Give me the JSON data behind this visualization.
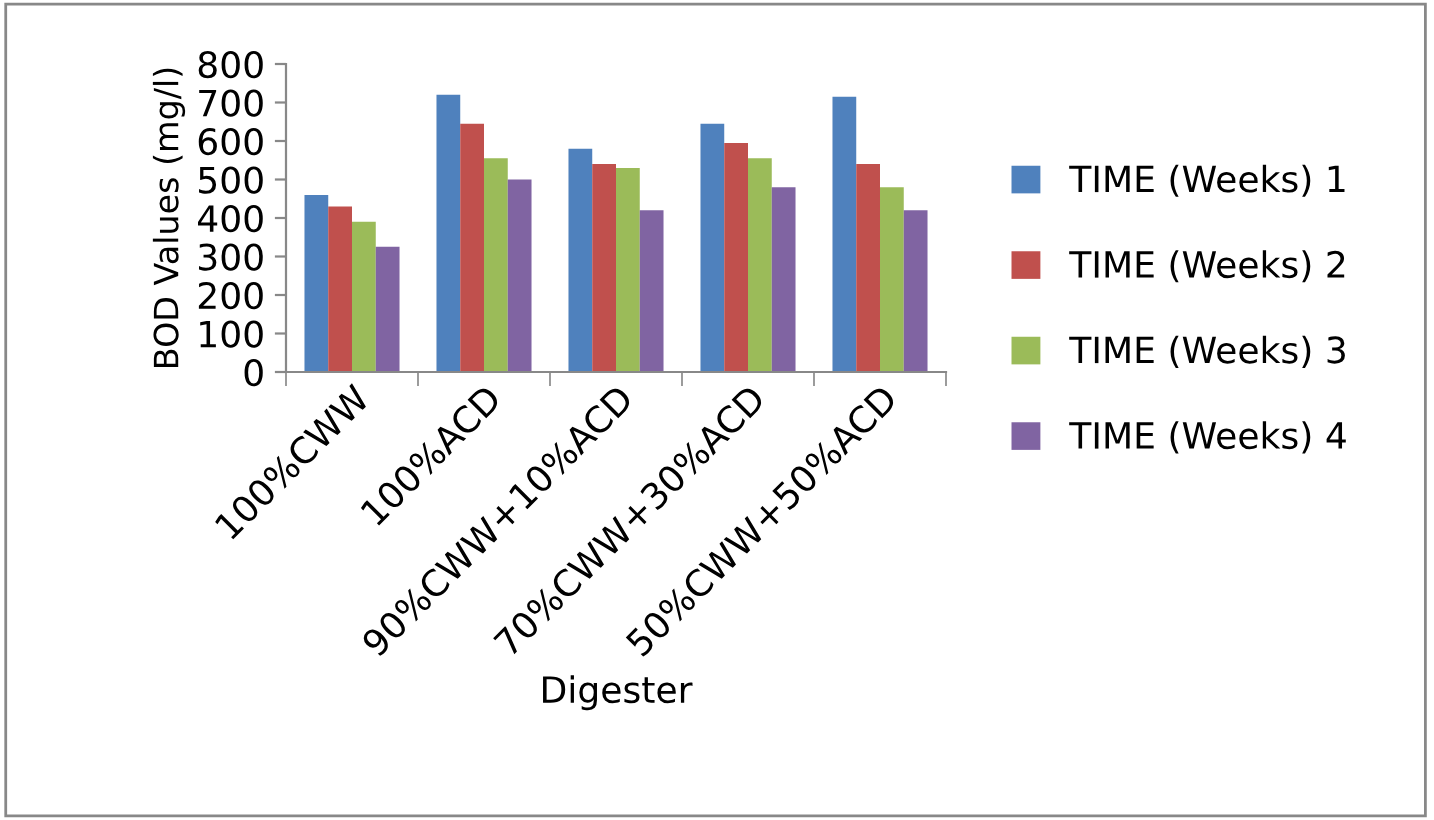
{
  "chart_data": {
    "type": "bar",
    "xlabel": "Digester",
    "ylabel": "BOD Values (mg/l)",
    "categories": [
      "100%CWW",
      "100%ACD",
      "90%CWW+10%ACD",
      "70%CWW+30%ACD",
      "50%CWW+50%ACD"
    ],
    "series": [
      {
        "name": "TIME (Weeks) 1",
        "color": "#4f81bd",
        "values": [
          460,
          720,
          580,
          645,
          715
        ]
      },
      {
        "name": "TIME (Weeks) 2",
        "color": "#c0504d",
        "values": [
          430,
          645,
          540,
          595,
          540
        ]
      },
      {
        "name": "TIME (Weeks) 3",
        "color": "#9bbb59",
        "values": [
          390,
          555,
          530,
          555,
          480
        ]
      },
      {
        "name": "TIME (Weeks) 4",
        "color": "#8064a2",
        "values": [
          325,
          500,
          420,
          480,
          420
        ]
      }
    ],
    "ylim": [
      0,
      800
    ],
    "yticks": [
      0,
      100,
      200,
      300,
      400,
      500,
      600,
      700,
      800
    ],
    "grid": false,
    "legend": "right"
  }
}
